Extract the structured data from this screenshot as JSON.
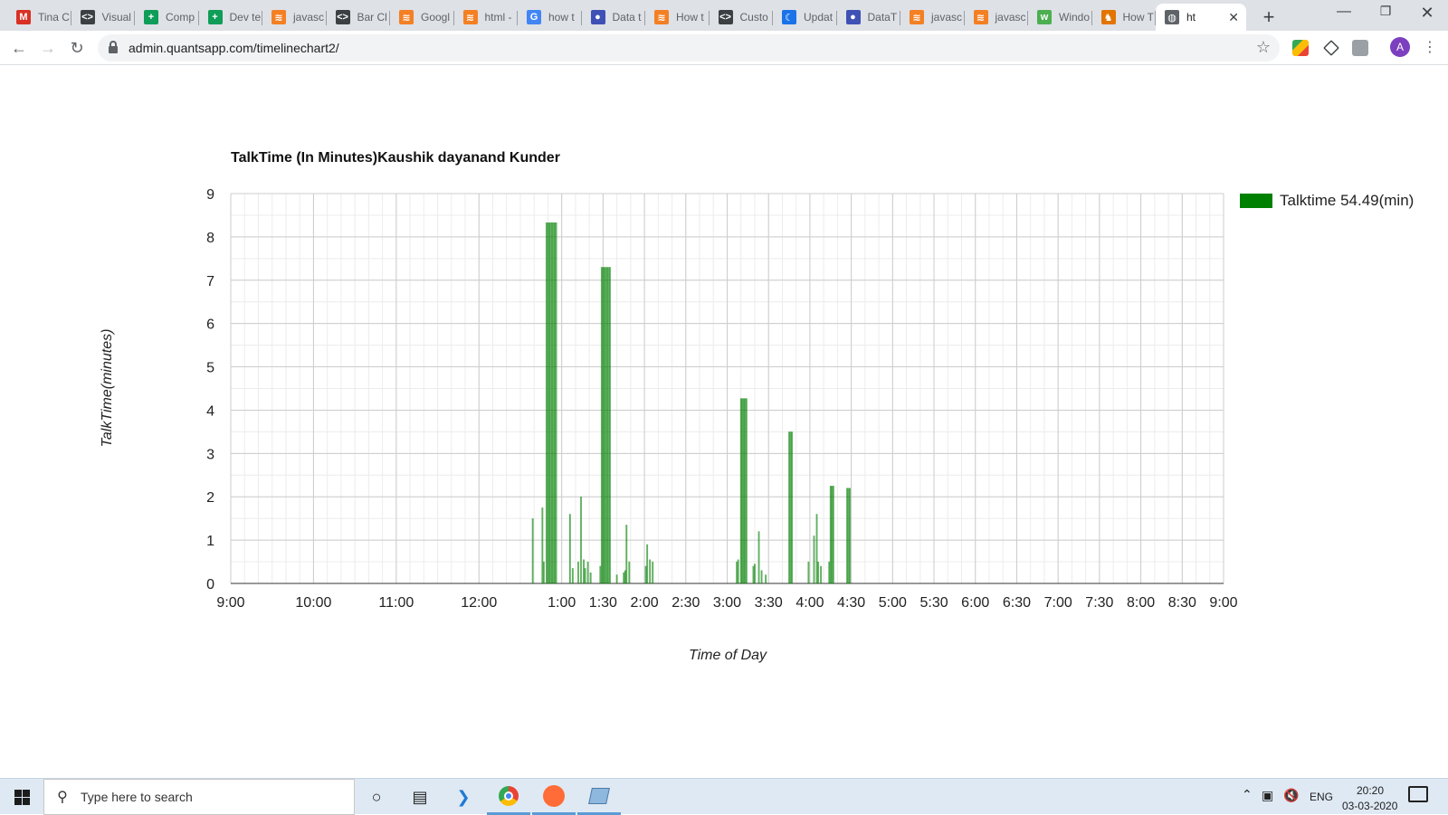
{
  "browser": {
    "tabs": [
      {
        "label": "Tina C",
        "icon": "gmail-icon",
        "color": "#d93025"
      },
      {
        "label": "Visual",
        "icon": "codepen-icon",
        "color": "#3c4043"
      },
      {
        "label": "Comp",
        "icon": "google-sheets-icon",
        "color": "#0f9d58"
      },
      {
        "label": "Dev te",
        "icon": "google-sheets-icon",
        "color": "#0f9d58"
      },
      {
        "label": "javasc",
        "icon": "stackoverflow-icon",
        "color": "#f48024"
      },
      {
        "label": "Bar Cl",
        "icon": "codepen-icon",
        "color": "#3c4043"
      },
      {
        "label": "Googl",
        "icon": "stackoverflow-icon",
        "color": "#f48024"
      },
      {
        "label": "html -",
        "icon": "stackoverflow-icon",
        "color": "#f48024"
      },
      {
        "label": "how t",
        "icon": "google-icon",
        "color": "#4285f4"
      },
      {
        "label": "Data t",
        "icon": "datatables-icon",
        "color": "#3f51b5"
      },
      {
        "label": "How t",
        "icon": "stackoverflow-icon",
        "color": "#f48024"
      },
      {
        "label": "Custo",
        "icon": "codepen-icon",
        "color": "#3c4043"
      },
      {
        "label": "Updat",
        "icon": "moon-icon",
        "color": "#1a73e8"
      },
      {
        "label": "DataT",
        "icon": "datatables-icon",
        "color": "#3f51b5"
      },
      {
        "label": "javasc",
        "icon": "stackoverflow-icon",
        "color": "#f48024"
      },
      {
        "label": "javasc",
        "icon": "stackoverflow-icon",
        "color": "#f48024"
      },
      {
        "label": "Windo",
        "icon": "w3schools-icon",
        "color": "#4caf50"
      },
      {
        "label": "How T",
        "icon": "lion-icon",
        "color": "#e37400"
      },
      {
        "label": "ht",
        "icon": "globe-icon",
        "color": "#5f6368",
        "active": true
      }
    ],
    "url": "admin.quantsapp.com/timelinechart2/",
    "avatar_letter": "A"
  },
  "chart_data": {
    "type": "bar",
    "title": "TalkTime (In Minutes)Kaushik dayanand Kunder",
    "xlabel": "Time of Day",
    "ylabel": "TalkTime(minutes)",
    "legend": {
      "label": "Talktime 54.49(min)",
      "placement": "right"
    },
    "color": "#008000",
    "ylim": [
      0,
      9
    ],
    "yticks": [
      0,
      1,
      2,
      3,
      4,
      5,
      6,
      7,
      8,
      9
    ],
    "xlim_minutes": [
      0,
      720
    ],
    "xtick_labels": [
      "9:00",
      "10:00",
      "11:00",
      "12:00",
      "1:00",
      "1:30",
      "2:00",
      "2:30",
      "3:00",
      "3:30",
      "4:00",
      "4:30",
      "5:00",
      "5:30",
      "6:00",
      "6:30",
      "7:00",
      "7:30",
      "8:00",
      "8:30",
      "9:00"
    ],
    "xtick_minutes": [
      0,
      60,
      120,
      180,
      240,
      270,
      300,
      330,
      360,
      390,
      420,
      450,
      480,
      510,
      540,
      570,
      600,
      630,
      660,
      690,
      720
    ],
    "grid": true,
    "series": [
      {
        "name": "Talktime 54.49(min)",
        "points": [
          {
            "t": 219,
            "v": 1.5
          },
          {
            "t": 226,
            "v": 1.75
          },
          {
            "t": 227,
            "v": 0.5
          },
          {
            "t": 229,
            "v": 8.33
          },
          {
            "t": 230,
            "v": 8.33
          },
          {
            "t": 231,
            "v": 8.33
          },
          {
            "t": 232,
            "v": 8.33
          },
          {
            "t": 233,
            "v": 8.33
          },
          {
            "t": 234,
            "v": 8.33
          },
          {
            "t": 235,
            "v": 8.33
          },
          {
            "t": 236,
            "v": 8.33
          },
          {
            "t": 246,
            "v": 1.6
          },
          {
            "t": 248,
            "v": 0.35
          },
          {
            "t": 252,
            "v": 0.5
          },
          {
            "t": 254,
            "v": 2.0
          },
          {
            "t": 256,
            "v": 0.55
          },
          {
            "t": 257,
            "v": 0.35
          },
          {
            "t": 259,
            "v": 0.5
          },
          {
            "t": 261,
            "v": 0.25
          },
          {
            "t": 268,
            "v": 0.4
          },
          {
            "t": 269,
            "v": 7.3
          },
          {
            "t": 270,
            "v": 7.3
          },
          {
            "t": 271,
            "v": 7.3
          },
          {
            "t": 272,
            "v": 7.3
          },
          {
            "t": 273,
            "v": 7.3
          },
          {
            "t": 274,
            "v": 7.3
          },
          {
            "t": 275,
            "v": 7.3
          },
          {
            "t": 280,
            "v": 0.2
          },
          {
            "t": 285,
            "v": 0.25
          },
          {
            "t": 286,
            "v": 0.3
          },
          {
            "t": 287,
            "v": 1.35
          },
          {
            "t": 289,
            "v": 0.5
          },
          {
            "t": 301,
            "v": 0.4
          },
          {
            "t": 302,
            "v": 0.9
          },
          {
            "t": 304,
            "v": 0.55
          },
          {
            "t": 306,
            "v": 0.5
          },
          {
            "t": 367,
            "v": 0.5
          },
          {
            "t": 368,
            "v": 0.55
          },
          {
            "t": 370,
            "v": 4.27
          },
          {
            "t": 371,
            "v": 4.27
          },
          {
            "t": 372,
            "v": 4.27
          },
          {
            "t": 373,
            "v": 4.27
          },
          {
            "t": 374,
            "v": 4.27
          },
          {
            "t": 379,
            "v": 0.4
          },
          {
            "t": 380,
            "v": 0.45
          },
          {
            "t": 383,
            "v": 1.2
          },
          {
            "t": 385,
            "v": 0.3
          },
          {
            "t": 388,
            "v": 0.2
          },
          {
            "t": 405,
            "v": 3.5
          },
          {
            "t": 406,
            "v": 3.5
          },
          {
            "t": 407,
            "v": 3.5
          },
          {
            "t": 419,
            "v": 0.5
          },
          {
            "t": 423,
            "v": 1.1
          },
          {
            "t": 425,
            "v": 1.6
          },
          {
            "t": 426,
            "v": 0.5
          },
          {
            "t": 428,
            "v": 0.4
          },
          {
            "t": 434,
            "v": 0.5
          },
          {
            "t": 435,
            "v": 2.25
          },
          {
            "t": 436,
            "v": 2.25
          },
          {
            "t": 437,
            "v": 2.25
          },
          {
            "t": 447,
            "v": 2.2
          },
          {
            "t": 448,
            "v": 2.2
          },
          {
            "t": 449,
            "v": 2.2
          }
        ]
      }
    ]
  },
  "taskbar": {
    "search_placeholder": "Type here to search",
    "language": "ENG",
    "time": "20:20",
    "date": "03-03-2020"
  }
}
